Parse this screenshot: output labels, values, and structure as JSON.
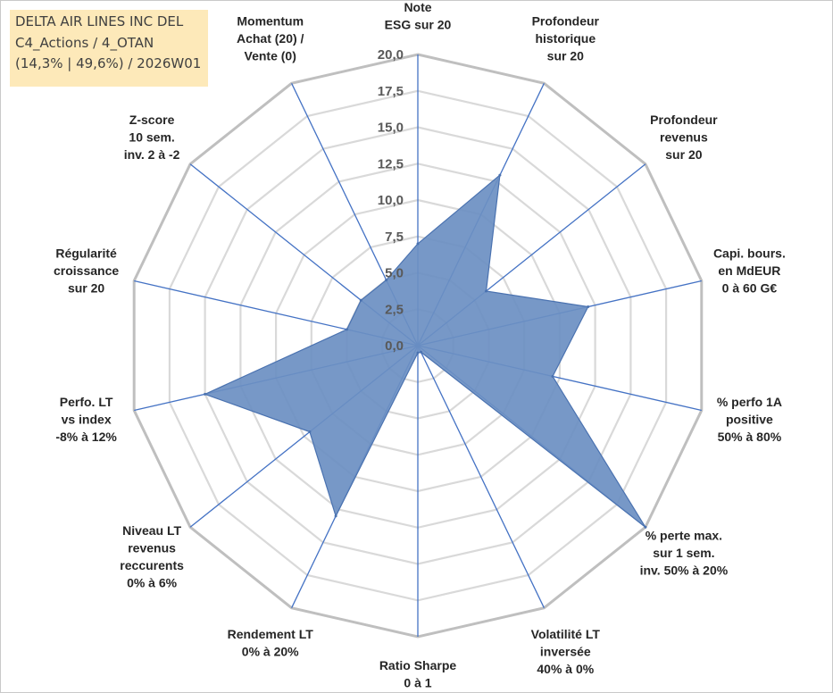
{
  "chart_data": {
    "type": "radar",
    "title_lines": [
      "DELTA AIR LINES INC DEL",
      "C4_Actions / 4_OTAN",
      "(14,3% | 49,6%) / 2026W01"
    ],
    "radial_range": [
      0,
      20
    ],
    "tick_values": [
      0,
      2.5,
      5,
      7.5,
      10,
      12.5,
      15,
      17.5,
      20
    ],
    "tick_labels": [
      "0,0",
      "2,5",
      "5,0",
      "7,5",
      "10,0",
      "12,5",
      "15,0",
      "17,5",
      "20,0"
    ],
    "grid": true,
    "axes": [
      {
        "label": [
          "Note",
          "ESG sur 20"
        ],
        "value": 7.0
      },
      {
        "label": [
          "Profondeur",
          "historique",
          "sur 20"
        ],
        "value": 13.0
      },
      {
        "label": [
          "Profondeur",
          "revenus",
          "sur 20"
        ],
        "value": 6.0
      },
      {
        "label": [
          "Capi. bours.",
          "en MdEUR",
          "0 à 60 G€"
        ],
        "value": 12.0
      },
      {
        "label": [
          "% perfo 1A",
          "positive",
          "50% à 80%"
        ],
        "value": 9.5
      },
      {
        "label": [
          "% perte max.",
          "sur 1 sem.",
          "inv. 50% à 20%"
        ],
        "value": 20.0
      },
      {
        "label": [
          "Volatilité LT",
          "inversée",
          "40% à 0%"
        ],
        "value": 0.5
      },
      {
        "label": [
          "Ratio Sharpe",
          "0 à 1"
        ],
        "value": 0.5
      },
      {
        "label": [
          "Rendement LT",
          "0% à 20%"
        ],
        "value": 13.0
      },
      {
        "label": [
          "Niveau LT",
          "revenus",
          "reccurents",
          "0% à 6%"
        ],
        "value": 9.5
      },
      {
        "label": [
          "Perfo. LT",
          "vs index",
          "-8% à 12%"
        ],
        "value": 15.0
      },
      {
        "label": [
          "Régularité",
          "croissance",
          "sur 20"
        ],
        "value": 5.0
      },
      {
        "label": [
          "Z-score",
          "10 sem.",
          "inv. 2 à -2"
        ],
        "value": 5.0
      },
      {
        "label": [
          "Momentum",
          "Achat (20) /",
          "Vente (0)"
        ],
        "value": 5.0
      }
    ],
    "colors": {
      "fill": "#6b8fc2",
      "stroke": "#4a72b0",
      "spoke": "#4472c4",
      "grid_outer": "#bfbfbf",
      "grid_inner": "#d9d9d9",
      "title_box_bg": "#fde9b9"
    }
  }
}
